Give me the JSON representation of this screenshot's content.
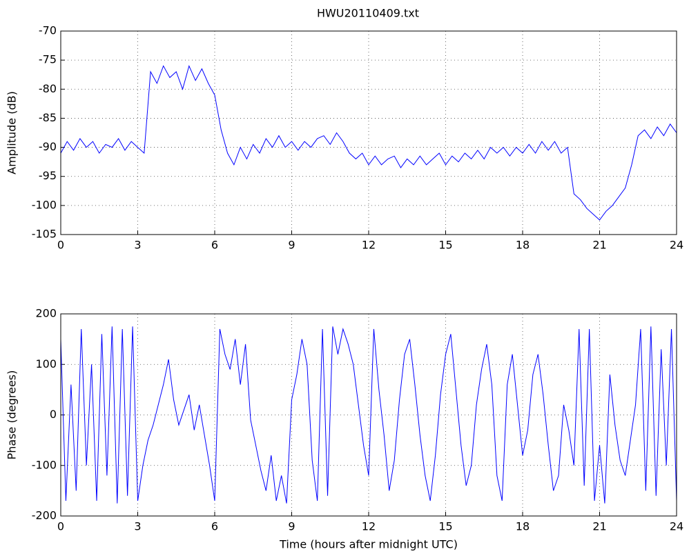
{
  "chart_data": [
    {
      "type": "line",
      "title": "HWU20110409.txt",
      "ylabel": "Amplitude (dB)",
      "grid": true,
      "xlim": [
        0,
        24
      ],
      "xticks": [
        0,
        3,
        6,
        9,
        12,
        15,
        18,
        21,
        24
      ],
      "ylim": [
        -105,
        -70
      ],
      "yticks": [
        -105,
        -100,
        -95,
        -90,
        -85,
        -80,
        -75,
        -70
      ],
      "x": [
        0,
        0.25,
        0.5,
        0.75,
        1,
        1.25,
        1.5,
        1.75,
        2,
        2.25,
        2.5,
        2.75,
        3,
        3.25,
        3.5,
        3.75,
        4,
        4.25,
        4.5,
        4.75,
        5,
        5.25,
        5.5,
        5.75,
        6,
        6.25,
        6.5,
        6.75,
        7,
        7.25,
        7.5,
        7.75,
        8,
        8.25,
        8.5,
        8.75,
        9,
        9.25,
        9.5,
        9.75,
        10,
        10.25,
        10.5,
        10.75,
        11,
        11.25,
        11.5,
        11.75,
        12,
        12.25,
        12.5,
        12.75,
        13,
        13.25,
        13.5,
        13.75,
        14,
        14.25,
        14.5,
        14.75,
        15,
        15.25,
        15.5,
        15.75,
        16,
        16.25,
        16.5,
        16.75,
        17,
        17.25,
        17.5,
        17.75,
        18,
        18.25,
        18.5,
        18.75,
        19,
        19.25,
        19.5,
        19.75,
        20,
        20.25,
        20.5,
        20.75,
        21,
        21.25,
        21.5,
        21.75,
        22,
        22.25,
        22.5,
        22.75,
        23,
        23.25,
        23.5,
        23.75,
        24
      ],
      "series": [
        {
          "color": "#0000ff",
          "values": [
            -91,
            -89,
            -90.5,
            -88.5,
            -90,
            -89,
            -91,
            -89.5,
            -90,
            -88.5,
            -90.5,
            -89,
            -90,
            -91,
            -77,
            -79,
            -76,
            -78,
            -77,
            -80,
            -76,
            -78.5,
            -76.5,
            -79,
            -81,
            -87,
            -91,
            -93,
            -90,
            -92,
            -89.5,
            -91,
            -88.5,
            -90,
            -88,
            -90,
            -89,
            -90.5,
            -89,
            -90,
            -88.5,
            -88,
            -89.5,
            -87.5,
            -89,
            -91,
            -92,
            -91,
            -93,
            -91.5,
            -93,
            -92,
            -91.5,
            -93.5,
            -92,
            -93,
            -91.5,
            -93,
            -92,
            -91,
            -93,
            -91.5,
            -92.5,
            -91,
            -92,
            -90.5,
            -92,
            -90,
            -91,
            -90,
            -91.5,
            -90,
            -91,
            -89.5,
            -91,
            -89,
            -90.5,
            -89,
            -91,
            -90,
            -98,
            -99,
            -100.5,
            -101.5,
            -102.5,
            -101,
            -100,
            -98.5,
            -97,
            -93,
            -88,
            -87,
            -88.5,
            -86.5,
            -88,
            -86,
            -87.5
          ]
        }
      ]
    },
    {
      "type": "line",
      "ylabel": "Phase (degrees)",
      "xlabel": "Time (hours after midnight UTC)",
      "grid": true,
      "xlim": [
        0,
        24
      ],
      "xticks": [
        0,
        3,
        6,
        9,
        12,
        15,
        18,
        21,
        24
      ],
      "ylim": [
        -200,
        200
      ],
      "yticks": [
        -200,
        -100,
        0,
        100,
        200
      ],
      "x": [
        0,
        0.2,
        0.4,
        0.6,
        0.8,
        1,
        1.2,
        1.4,
        1.6,
        1.8,
        2,
        2.2,
        2.4,
        2.6,
        2.8,
        3,
        3.2,
        3.4,
        3.6,
        3.8,
        4,
        4.2,
        4.4,
        4.6,
        4.8,
        5,
        5.2,
        5.4,
        5.6,
        5.8,
        6,
        6.2,
        6.4,
        6.6,
        6.8,
        7,
        7.2,
        7.4,
        7.6,
        7.8,
        8,
        8.2,
        8.4,
        8.6,
        8.8,
        9,
        9.2,
        9.4,
        9.6,
        9.8,
        10,
        10.2,
        10.4,
        10.6,
        10.8,
        11,
        11.2,
        11.4,
        11.6,
        11.8,
        12,
        12.2,
        12.4,
        12.6,
        12.8,
        13,
        13.2,
        13.4,
        13.6,
        13.8,
        14,
        14.2,
        14.4,
        14.6,
        14.8,
        15,
        15.2,
        15.4,
        15.6,
        15.8,
        16,
        16.2,
        16.4,
        16.6,
        16.8,
        17,
        17.2,
        17.4,
        17.6,
        17.8,
        18,
        18.2,
        18.4,
        18.6,
        18.8,
        19,
        19.2,
        19.4,
        19.6,
        19.8,
        20,
        20.2,
        20.4,
        20.6,
        20.8,
        21,
        21.2,
        21.4,
        21.6,
        21.8,
        22,
        22.2,
        22.4,
        22.6,
        22.8,
        23,
        23.2,
        23.4,
        23.6,
        23.8,
        24
      ],
      "series": [
        {
          "color": "#0000ff",
          "values": [
            150,
            -170,
            60,
            -150,
            170,
            -100,
            100,
            -170,
            160,
            -120,
            175,
            -175,
            170,
            -160,
            175,
            -170,
            -100,
            -50,
            -20,
            20,
            60,
            110,
            30,
            -20,
            10,
            40,
            -30,
            20,
            -40,
            -100,
            -170,
            170,
            120,
            90,
            150,
            60,
            140,
            -10,
            -60,
            -110,
            -150,
            -80,
            -170,
            -120,
            -175,
            30,
            80,
            150,
            100,
            -90,
            -170,
            170,
            -160,
            175,
            120,
            170,
            140,
            100,
            20,
            -60,
            -120,
            170,
            50,
            -40,
            -150,
            -90,
            30,
            120,
            150,
            60,
            -40,
            -120,
            -170,
            -80,
            40,
            120,
            160,
            50,
            -60,
            -140,
            -100,
            20,
            90,
            140,
            60,
            -120,
            -170,
            60,
            120,
            20,
            -80,
            -30,
            80,
            120,
            40,
            -60,
            -150,
            -120,
            20,
            -30,
            -100,
            170,
            -140,
            170,
            -170,
            -60,
            -175,
            80,
            -20,
            -90,
            -120,
            -50,
            20,
            170,
            -150,
            175,
            -160,
            130,
            -100,
            170,
            -170
          ]
        }
      ]
    }
  ]
}
